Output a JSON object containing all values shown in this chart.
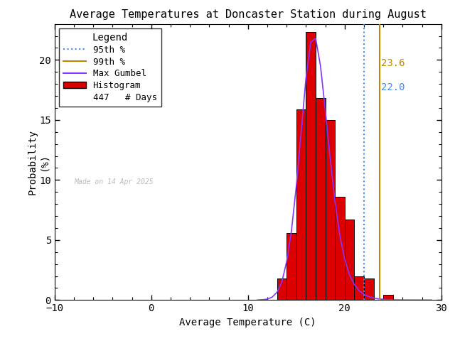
{
  "title": "Average Temperatures at Doncaster Station during August",
  "xlabel": "Average Temperature (C)",
  "ylabel": "Probability\n(%)",
  "xlim": [
    -10,
    30
  ],
  "ylim": [
    0,
    23
  ],
  "xticks": [
    -10,
    0,
    10,
    20,
    30
  ],
  "yticks": [
    0,
    5,
    10,
    15,
    20
  ],
  "bar_edges": [
    13,
    14,
    15,
    16,
    17,
    18,
    19,
    20,
    21,
    22,
    23,
    24,
    25,
    26,
    27
  ],
  "bar_heights": [
    1.8,
    5.6,
    15.9,
    22.3,
    16.8,
    15.0,
    8.6,
    6.7,
    2.0,
    1.8,
    0.0,
    0.45,
    0.0,
    0.0
  ],
  "bar_color": "#dd0000",
  "bar_edgecolor": "#000000",
  "gumbel_x": [
    11.0,
    11.5,
    12.0,
    12.5,
    13.0,
    13.5,
    14.0,
    14.5,
    15.0,
    15.5,
    16.0,
    16.5,
    17.0,
    17.5,
    18.0,
    18.5,
    19.0,
    19.5,
    20.0,
    20.5,
    21.0,
    21.5,
    22.0,
    22.5,
    23.0,
    23.5,
    24.0,
    24.5,
    25.0,
    25.5,
    26.0,
    26.5,
    27.0,
    27.5,
    28.0,
    28.5,
    29.0
  ],
  "gumbel_y": [
    0.01,
    0.03,
    0.08,
    0.25,
    0.65,
    1.5,
    3.2,
    5.8,
    9.5,
    14.0,
    18.5,
    21.5,
    21.8,
    19.5,
    15.8,
    11.8,
    8.2,
    5.4,
    3.4,
    2.1,
    1.3,
    0.78,
    0.47,
    0.28,
    0.17,
    0.1,
    0.062,
    0.037,
    0.022,
    0.013,
    0.008,
    0.005,
    0.003,
    0.002,
    0.001,
    0.001,
    0.0005
  ],
  "gumbel_color": "#8833ff",
  "percentile_95": 22.0,
  "percentile_99": 23.6,
  "percentile_95_color": "#4488ff",
  "percentile_99_color": "#bb8800",
  "n_days": 447,
  "made_on": "Made on 14 Apr 2025",
  "made_on_color": "#bbbbbb",
  "background_color": "#ffffff",
  "title_fontsize": 11,
  "axis_fontsize": 10,
  "tick_fontsize": 10,
  "legend_fontsize": 9
}
